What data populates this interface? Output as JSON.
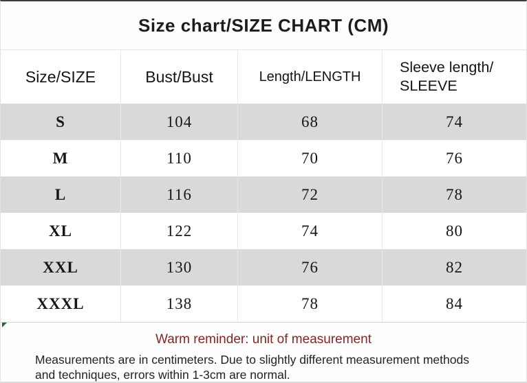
{
  "title": "Size chart/SIZE CHART (CM)",
  "table": {
    "columns": [
      "Size/SIZE",
      "Bust/Bust",
      "Length/LENGTH",
      "Sleeve length/\nSLEEVE"
    ],
    "rows": [
      {
        "size": "S",
        "bust": "104",
        "length": "68",
        "sleeve": "74"
      },
      {
        "size": "M",
        "bust": "110",
        "length": "70",
        "sleeve": "76"
      },
      {
        "size": "L",
        "bust": "116",
        "length": "72",
        "sleeve": "78"
      },
      {
        "size": "XL",
        "bust": "122",
        "length": "74",
        "sleeve": "80"
      },
      {
        "size": "XXL",
        "bust": "130",
        "length": "76",
        "sleeve": "82"
      },
      {
        "size": "XXXL",
        "bust": "138",
        "length": "78",
        "sleeve": "84"
      }
    ]
  },
  "footer": {
    "reminder_title": "Warm reminder: unit of measurement",
    "reminder_body": "Measurements are in centimeters. Due to slightly different measurement methods\nand techniques, errors within 1-3cm are normal."
  },
  "colors": {
    "row_stripe": "#d9d9d9",
    "reminder_title_text": "#822626",
    "body_text": "#1f1f1f",
    "corner_marker_green": "#1e6b30",
    "top_border": "#3c3c3c"
  }
}
